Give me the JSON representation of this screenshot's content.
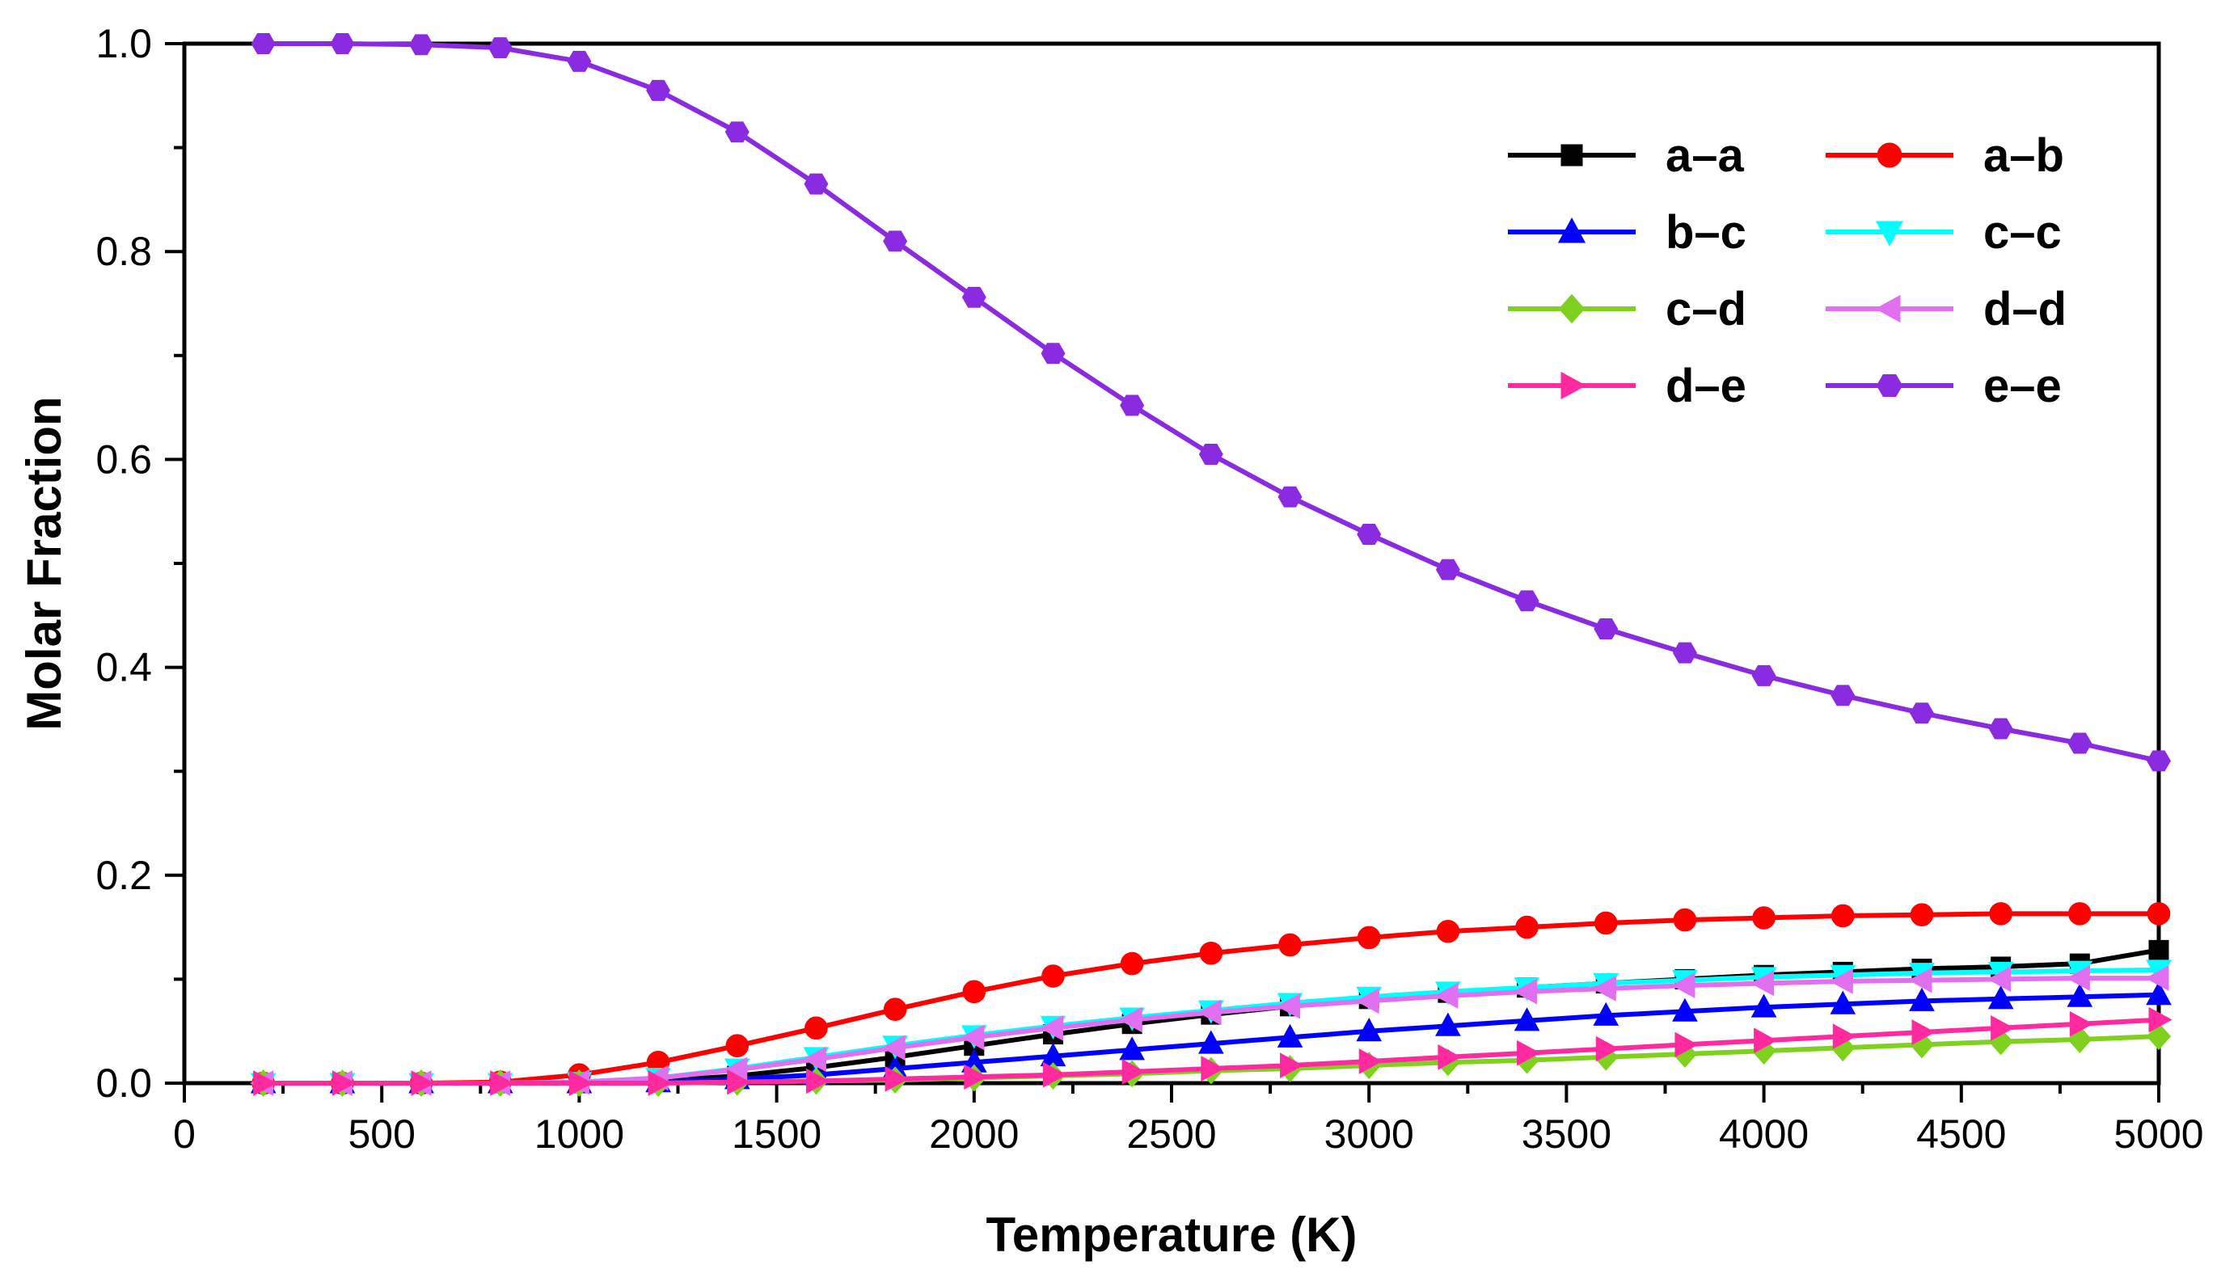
{
  "chart_data": {
    "type": "line",
    "title": "",
    "xlabel": "Temperature (K)",
    "ylabel": "Molar Fraction",
    "xlim": [
      0,
      5000
    ],
    "ylim": [
      0,
      1.0
    ],
    "xticks": [
      0,
      500,
      1000,
      1500,
      2000,
      2500,
      3000,
      3500,
      4000,
      4500,
      5000
    ],
    "xtick_labels": [
      "0",
      "500",
      "1000",
      "1500",
      "2000",
      "2500",
      "3000",
      "3500",
      "4000",
      "4500",
      "5000"
    ],
    "yticks": [
      0.0,
      0.2,
      0.4,
      0.6,
      0.8,
      1.0
    ],
    "ytick_labels": [
      "0.0",
      "0.2",
      "0.4",
      "0.6",
      "0.8",
      "1.0"
    ],
    "grid": false,
    "legend_position": "top-right",
    "x": [
      200,
      400,
      600,
      800,
      1000,
      1200,
      1400,
      1600,
      1800,
      2000,
      2200,
      2400,
      2600,
      2800,
      3000,
      3200,
      3400,
      3600,
      3800,
      4000,
      4200,
      4400,
      4600,
      4800,
      5000
    ],
    "series": [
      {
        "name": "a–a",
        "color": "#000000",
        "marker": "square",
        "values": [
          0.0,
          0.0,
          0.0,
          0.0,
          0.0,
          0.002,
          0.007,
          0.015,
          0.025,
          0.036,
          0.047,
          0.057,
          0.066,
          0.074,
          0.081,
          0.087,
          0.092,
          0.096,
          0.1,
          0.104,
          0.107,
          0.11,
          0.112,
          0.115,
          0.128
        ]
      },
      {
        "name": "a–b",
        "color": "#ff0000",
        "marker": "circle",
        "values": [
          0.0,
          0.0,
          0.0,
          0.001,
          0.008,
          0.02,
          0.036,
          0.053,
          0.071,
          0.088,
          0.103,
          0.115,
          0.125,
          0.133,
          0.14,
          0.146,
          0.15,
          0.154,
          0.157,
          0.159,
          0.161,
          0.162,
          0.163,
          0.163,
          0.163
        ]
      },
      {
        "name": "b–c",
        "color": "#0000ff",
        "marker": "triangle-up",
        "values": [
          0.0,
          0.0,
          0.0,
          0.0,
          0.0,
          0.001,
          0.004,
          0.008,
          0.014,
          0.02,
          0.026,
          0.032,
          0.038,
          0.044,
          0.05,
          0.055,
          0.06,
          0.065,
          0.069,
          0.073,
          0.076,
          0.079,
          0.081,
          0.083,
          0.085
        ]
      },
      {
        "name": "c–c",
        "color": "#00ffff",
        "marker": "triangle-down",
        "values": [
          0.0,
          0.0,
          0.0,
          0.0,
          0.001,
          0.005,
          0.014,
          0.025,
          0.036,
          0.046,
          0.055,
          0.063,
          0.07,
          0.077,
          0.083,
          0.088,
          0.092,
          0.096,
          0.099,
          0.102,
          0.104,
          0.106,
          0.107,
          0.108,
          0.109
        ]
      },
      {
        "name": "c–d",
        "color": "#80d020",
        "marker": "diamond",
        "values": [
          0.0,
          0.0,
          0.0,
          0.0,
          0.0,
          0.0,
          0.001,
          0.002,
          0.003,
          0.005,
          0.007,
          0.009,
          0.012,
          0.014,
          0.017,
          0.02,
          0.022,
          0.025,
          0.028,
          0.031,
          0.034,
          0.037,
          0.04,
          0.042,
          0.045
        ]
      },
      {
        "name": "d–d",
        "color": "#e070f0",
        "marker": "triangle-left",
        "values": [
          0.0,
          0.0,
          0.0,
          0.0,
          0.001,
          0.005,
          0.013,
          0.023,
          0.034,
          0.044,
          0.053,
          0.061,
          0.068,
          0.074,
          0.079,
          0.084,
          0.088,
          0.091,
          0.094,
          0.096,
          0.098,
          0.099,
          0.1,
          0.101,
          0.101
        ]
      },
      {
        "name": "d–e",
        "color": "#ff2aa0",
        "marker": "triangle-right",
        "values": [
          0.0,
          0.0,
          0.0,
          0.0,
          0.0,
          0.0,
          0.001,
          0.002,
          0.004,
          0.006,
          0.008,
          0.011,
          0.014,
          0.017,
          0.021,
          0.025,
          0.029,
          0.033,
          0.037,
          0.041,
          0.045,
          0.049,
          0.053,
          0.057,
          0.061
        ]
      },
      {
        "name": "e–e",
        "color": "#8a2be2",
        "marker": "hexagon",
        "values": [
          1.0,
          1.0,
          0.999,
          0.996,
          0.983,
          0.955,
          0.915,
          0.865,
          0.81,
          0.756,
          0.702,
          0.652,
          0.605,
          0.564,
          0.528,
          0.494,
          0.464,
          0.437,
          0.414,
          0.392,
          0.373,
          0.356,
          0.341,
          0.327,
          0.31
        ]
      }
    ]
  }
}
